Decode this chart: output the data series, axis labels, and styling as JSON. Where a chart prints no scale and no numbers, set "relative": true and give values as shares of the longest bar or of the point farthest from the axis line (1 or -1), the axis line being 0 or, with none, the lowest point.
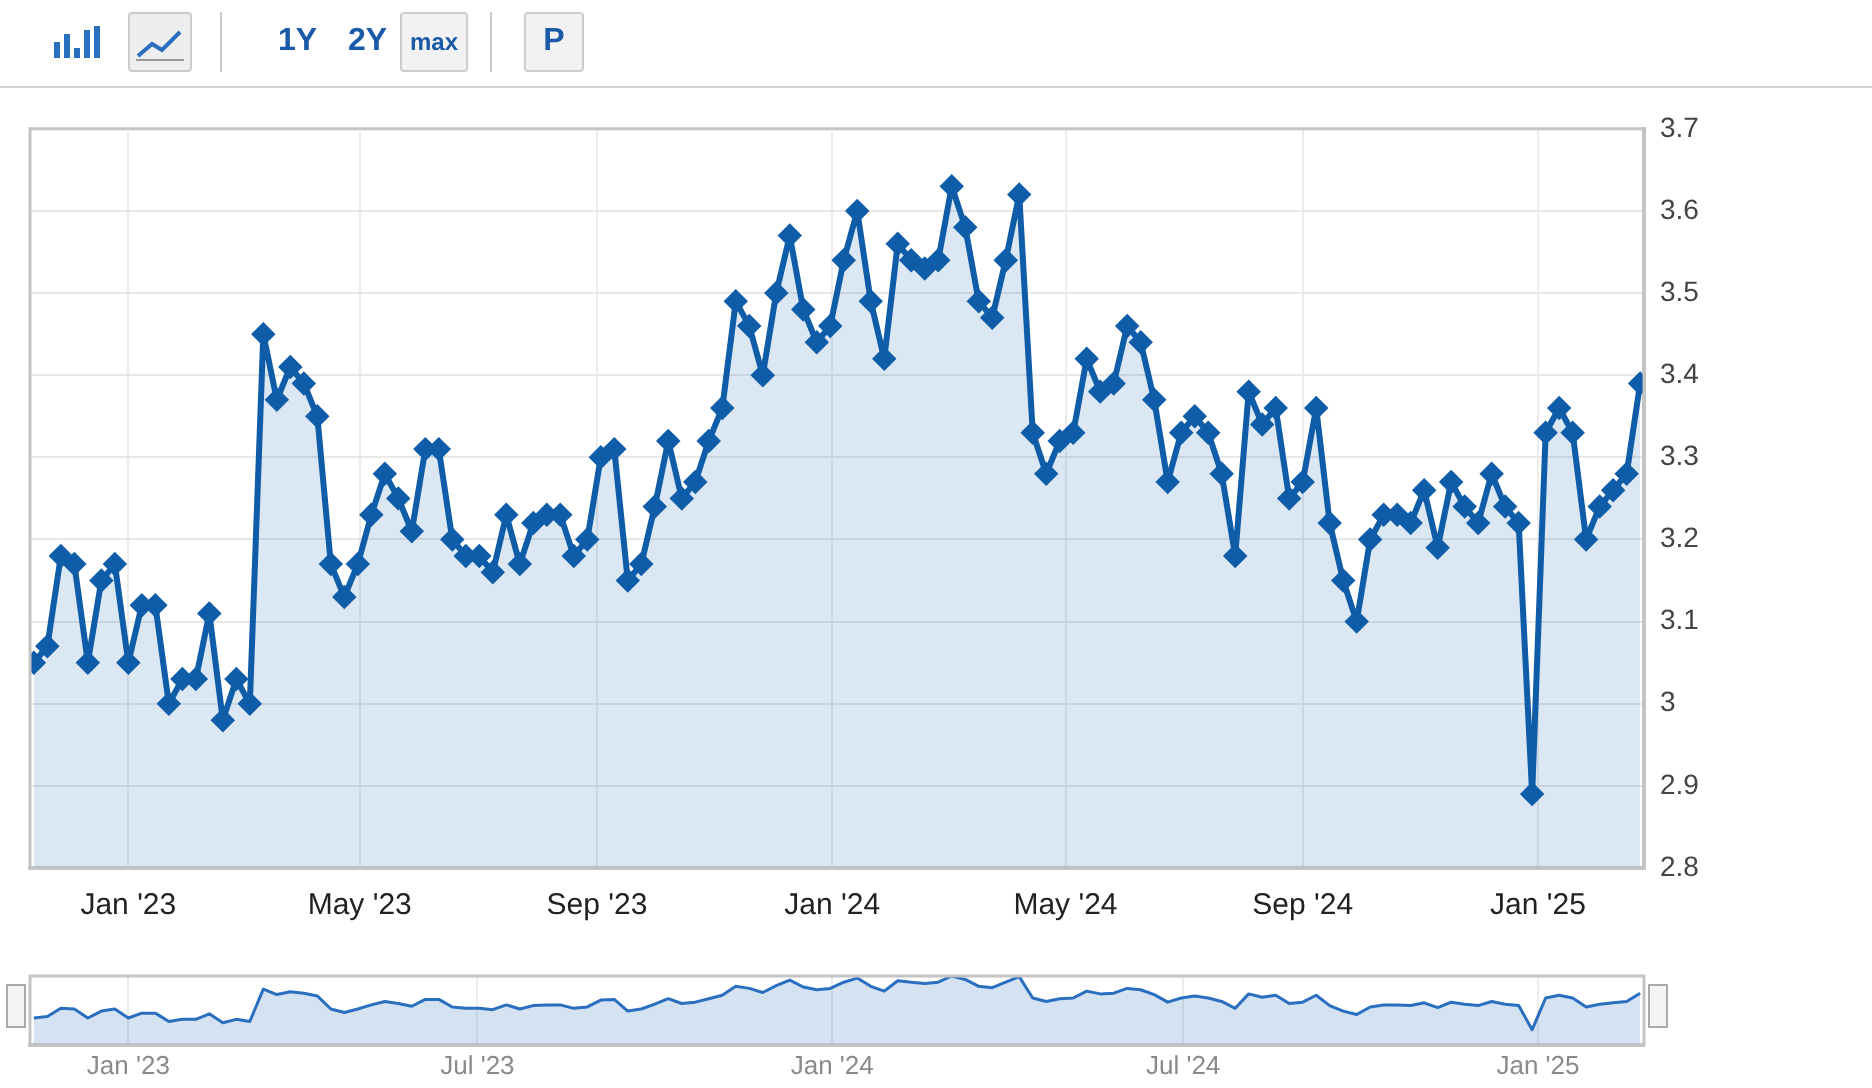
{
  "chart_data": [
    {
      "type": "area",
      "annotations": [
        "1Y",
        "2Y",
        "max",
        "P"
      ],
      "x": [
        "2022-11-13",
        "2022-11-20",
        "2022-11-27",
        "2022-12-04",
        "2022-12-11",
        "2022-12-18",
        "2022-12-25",
        "2023-01-01",
        "2023-01-08",
        "2023-01-15",
        "2023-01-22",
        "2023-01-29",
        "2023-02-05",
        "2023-02-12",
        "2023-02-19",
        "2023-02-26",
        "2023-03-05",
        "2023-03-12",
        "2023-03-19",
        "2023-03-26",
        "2023-04-02",
        "2023-04-09",
        "2023-04-16",
        "2023-04-23",
        "2023-04-30",
        "2023-05-07",
        "2023-05-14",
        "2023-05-21",
        "2023-05-28",
        "2023-06-04",
        "2023-06-11",
        "2023-06-18",
        "2023-06-25",
        "2023-07-02",
        "2023-07-09",
        "2023-07-16",
        "2023-07-23",
        "2023-07-30",
        "2023-08-06",
        "2023-08-13",
        "2023-08-20",
        "2023-08-27",
        "2023-09-03",
        "2023-09-10",
        "2023-09-17",
        "2023-09-24",
        "2023-10-01",
        "2023-10-08",
        "2023-10-15",
        "2023-10-22",
        "2023-10-29",
        "2023-11-05",
        "2023-11-12",
        "2023-11-19",
        "2023-11-26",
        "2023-12-03",
        "2023-12-10",
        "2023-12-17",
        "2023-12-24",
        "2023-12-31",
        "2024-01-07",
        "2024-01-14",
        "2024-01-21",
        "2024-01-28",
        "2024-02-04",
        "2024-02-11",
        "2024-02-18",
        "2024-02-25",
        "2024-03-03",
        "2024-03-10",
        "2024-03-17",
        "2024-03-24",
        "2024-03-31",
        "2024-04-07",
        "2024-04-14",
        "2024-04-21",
        "2024-04-28",
        "2024-05-05",
        "2024-05-12",
        "2024-05-19",
        "2024-05-26",
        "2024-06-02",
        "2024-06-09",
        "2024-06-16",
        "2024-06-23",
        "2024-06-30",
        "2024-07-07",
        "2024-07-14",
        "2024-07-21",
        "2024-07-28",
        "2024-08-04",
        "2024-08-11",
        "2024-08-18",
        "2024-08-25",
        "2024-09-01",
        "2024-09-08",
        "2024-09-15",
        "2024-09-22",
        "2024-09-29",
        "2024-10-06",
        "2024-10-13",
        "2024-10-20",
        "2024-10-27",
        "2024-11-03",
        "2024-11-10",
        "2024-11-17",
        "2024-11-24",
        "2024-12-01",
        "2024-12-08",
        "2024-12-15",
        "2024-12-22",
        "2024-12-29",
        "2025-01-05",
        "2025-01-12",
        "2025-01-19",
        "2025-01-26",
        "2025-02-02",
        "2025-02-09",
        "2025-02-16",
        "2025-02-23"
      ],
      "series": [
        {
          "color": "#0f5ca8",
          "values": [
            3.05,
            3.07,
            3.18,
            3.17,
            3.05,
            3.15,
            3.17,
            3.05,
            3.12,
            3.12,
            3.0,
            3.03,
            3.03,
            3.11,
            2.98,
            3.03,
            3.0,
            3.45,
            3.37,
            3.41,
            3.39,
            3.35,
            3.17,
            3.13,
            3.17,
            3.23,
            3.28,
            3.25,
            3.21,
            3.31,
            3.31,
            3.2,
            3.18,
            3.18,
            3.16,
            3.23,
            3.17,
            3.22,
            3.23,
            3.23,
            3.18,
            3.2,
            3.3,
            3.31,
            3.15,
            3.17,
            3.24,
            3.32,
            3.25,
            3.27,
            3.32,
            3.36,
            3.49,
            3.46,
            3.4,
            3.5,
            3.57,
            3.48,
            3.44,
            3.46,
            3.54,
            3.6,
            3.49,
            3.42,
            3.56,
            3.54,
            3.53,
            3.54,
            3.63,
            3.58,
            3.49,
            3.47,
            3.54,
            3.62,
            3.33,
            3.28,
            3.32,
            3.33,
            3.42,
            3.38,
            3.39,
            3.46,
            3.44,
            3.37,
            3.27,
            3.33,
            3.35,
            3.33,
            3.28,
            3.18,
            3.38,
            3.34,
            3.36,
            3.25,
            3.27,
            3.36,
            3.22,
            3.15,
            3.1,
            3.2,
            3.23,
            3.23,
            3.22,
            3.26,
            3.19,
            3.27,
            3.24,
            3.22,
            3.28,
            3.24,
            3.22,
            2.89,
            3.33,
            3.36,
            3.33,
            3.2,
            3.24,
            3.26,
            3.28,
            3.39
          ]
        }
      ],
      "xlim": [
        "2022-11-11",
        "2025-02-25"
      ],
      "xticks": [
        {
          "value": "2023-01-01",
          "label": "Jan '23"
        },
        {
          "value": "2023-05-01",
          "label": "May '23"
        },
        {
          "value": "2023-09-01",
          "label": "Sep '23"
        },
        {
          "value": "2024-01-01",
          "label": "Jan '24"
        },
        {
          "value": "2024-05-01",
          "label": "May '24"
        },
        {
          "value": "2024-09-01",
          "label": "Sep '24"
        },
        {
          "value": "2025-01-01",
          "label": "Jan '25"
        }
      ],
      "ylim": [
        2.8,
        3.7
      ],
      "yticks": [
        2.8,
        2.9,
        3,
        3.1,
        3.2,
        3.3,
        3.4,
        3.5,
        3.6,
        3.7
      ],
      "grid": true,
      "legend": false,
      "marker": "diamond",
      "line_style": "solid"
    },
    {
      "type": "area",
      "x": [
        "2022-11-13",
        "2022-11-20",
        "2022-11-27",
        "2022-12-04",
        "2022-12-11",
        "2022-12-18",
        "2022-12-25",
        "2023-01-01",
        "2023-01-08",
        "2023-01-15",
        "2023-01-22",
        "2023-01-29",
        "2023-02-05",
        "2023-02-12",
        "2023-02-19",
        "2023-02-26",
        "2023-03-05",
        "2023-03-12",
        "2023-03-19",
        "2023-03-26",
        "2023-04-02",
        "2023-04-09",
        "2023-04-16",
        "2023-04-23",
        "2023-04-30",
        "2023-05-07",
        "2023-05-14",
        "2023-05-21",
        "2023-05-28",
        "2023-06-04",
        "2023-06-11",
        "2023-06-18",
        "2023-06-25",
        "2023-07-02",
        "2023-07-09",
        "2023-07-16",
        "2023-07-23",
        "2023-07-30",
        "2023-08-06",
        "2023-08-13",
        "2023-08-20",
        "2023-08-27",
        "2023-09-03",
        "2023-09-10",
        "2023-09-17",
        "2023-09-24",
        "2023-10-01",
        "2023-10-08",
        "2023-10-15",
        "2023-10-22",
        "2023-10-29",
        "2023-11-05",
        "2023-11-12",
        "2023-11-19",
        "2023-11-26",
        "2023-12-03",
        "2023-12-10",
        "2023-12-17",
        "2023-12-24",
        "2023-12-31",
        "2024-01-07",
        "2024-01-14",
        "2024-01-21",
        "2024-01-28",
        "2024-02-04",
        "2024-02-11",
        "2024-02-18",
        "2024-02-25",
        "2024-03-03",
        "2024-03-10",
        "2024-03-17",
        "2024-03-24",
        "2024-03-31",
        "2024-04-07",
        "2024-04-14",
        "2024-04-21",
        "2024-04-28",
        "2024-05-05",
        "2024-05-12",
        "2024-05-19",
        "2024-05-26",
        "2024-06-02",
        "2024-06-09",
        "2024-06-16",
        "2024-06-23",
        "2024-06-30",
        "2024-07-07",
        "2024-07-14",
        "2024-07-21",
        "2024-07-28",
        "2024-08-04",
        "2024-08-11",
        "2024-08-18",
        "2024-08-25",
        "2024-09-01",
        "2024-09-08",
        "2024-09-15",
        "2024-09-22",
        "2024-09-29",
        "2024-10-06",
        "2024-10-13",
        "2024-10-20",
        "2024-10-27",
        "2024-11-03",
        "2024-11-10",
        "2024-11-17",
        "2024-11-24",
        "2024-12-01",
        "2024-12-08",
        "2024-12-15",
        "2024-12-22",
        "2024-12-29",
        "2025-01-05",
        "2025-01-12",
        "2025-01-19",
        "2025-01-26",
        "2025-02-02",
        "2025-02-09",
        "2025-02-16",
        "2025-02-23"
      ],
      "series": [
        {
          "color": "#2a6fbf",
          "values": [
            0.39,
            0.41,
            0.53,
            0.52,
            0.39,
            0.49,
            0.52,
            0.39,
            0.46,
            0.46,
            0.34,
            0.37,
            0.37,
            0.45,
            0.32,
            0.37,
            0.34,
            0.81,
            0.73,
            0.77,
            0.75,
            0.71,
            0.52,
            0.47,
            0.52,
            0.58,
            0.63,
            0.6,
            0.56,
            0.66,
            0.66,
            0.55,
            0.53,
            0.53,
            0.51,
            0.58,
            0.52,
            0.57,
            0.58,
            0.58,
            0.53,
            0.55,
            0.65,
            0.66,
            0.49,
            0.52,
            0.59,
            0.67,
            0.6,
            0.62,
            0.67,
            0.72,
            0.85,
            0.82,
            0.76,
            0.86,
            0.94,
            0.84,
            0.8,
            0.82,
            0.91,
            0.97,
            0.85,
            0.78,
            0.93,
            0.91,
            0.89,
            0.91,
            1.0,
            0.95,
            0.85,
            0.83,
            0.91,
            0.99,
            0.68,
            0.63,
            0.67,
            0.68,
            0.78,
            0.74,
            0.75,
            0.82,
            0.8,
            0.73,
            0.62,
            0.68,
            0.71,
            0.68,
            0.63,
            0.53,
            0.74,
            0.69,
            0.72,
            0.6,
            0.62,
            0.72,
            0.57,
            0.49,
            0.44,
            0.55,
            0.58,
            0.58,
            0.57,
            0.61,
            0.54,
            0.62,
            0.59,
            0.57,
            0.63,
            0.59,
            0.57,
            0.22,
            0.68,
            0.72,
            0.68,
            0.55,
            0.59,
            0.61,
            0.63,
            0.75
          ]
        }
      ],
      "xlim": [
        "2022-11-11",
        "2025-02-25"
      ],
      "xticks": [
        {
          "value": "2023-01-01",
          "label": "Jan '23"
        },
        {
          "value": "2023-07-01",
          "label": "Jul '23"
        },
        {
          "value": "2024-01-01",
          "label": "Jan '24"
        },
        {
          "value": "2024-07-01",
          "label": "Jul '24"
        },
        {
          "value": "2025-01-01",
          "label": "Jan '25"
        }
      ],
      "relative": true,
      "grid": "x",
      "legend": false,
      "marker": "none",
      "line_style": "solid",
      "tick_labels": "x"
    }
  ]
}
